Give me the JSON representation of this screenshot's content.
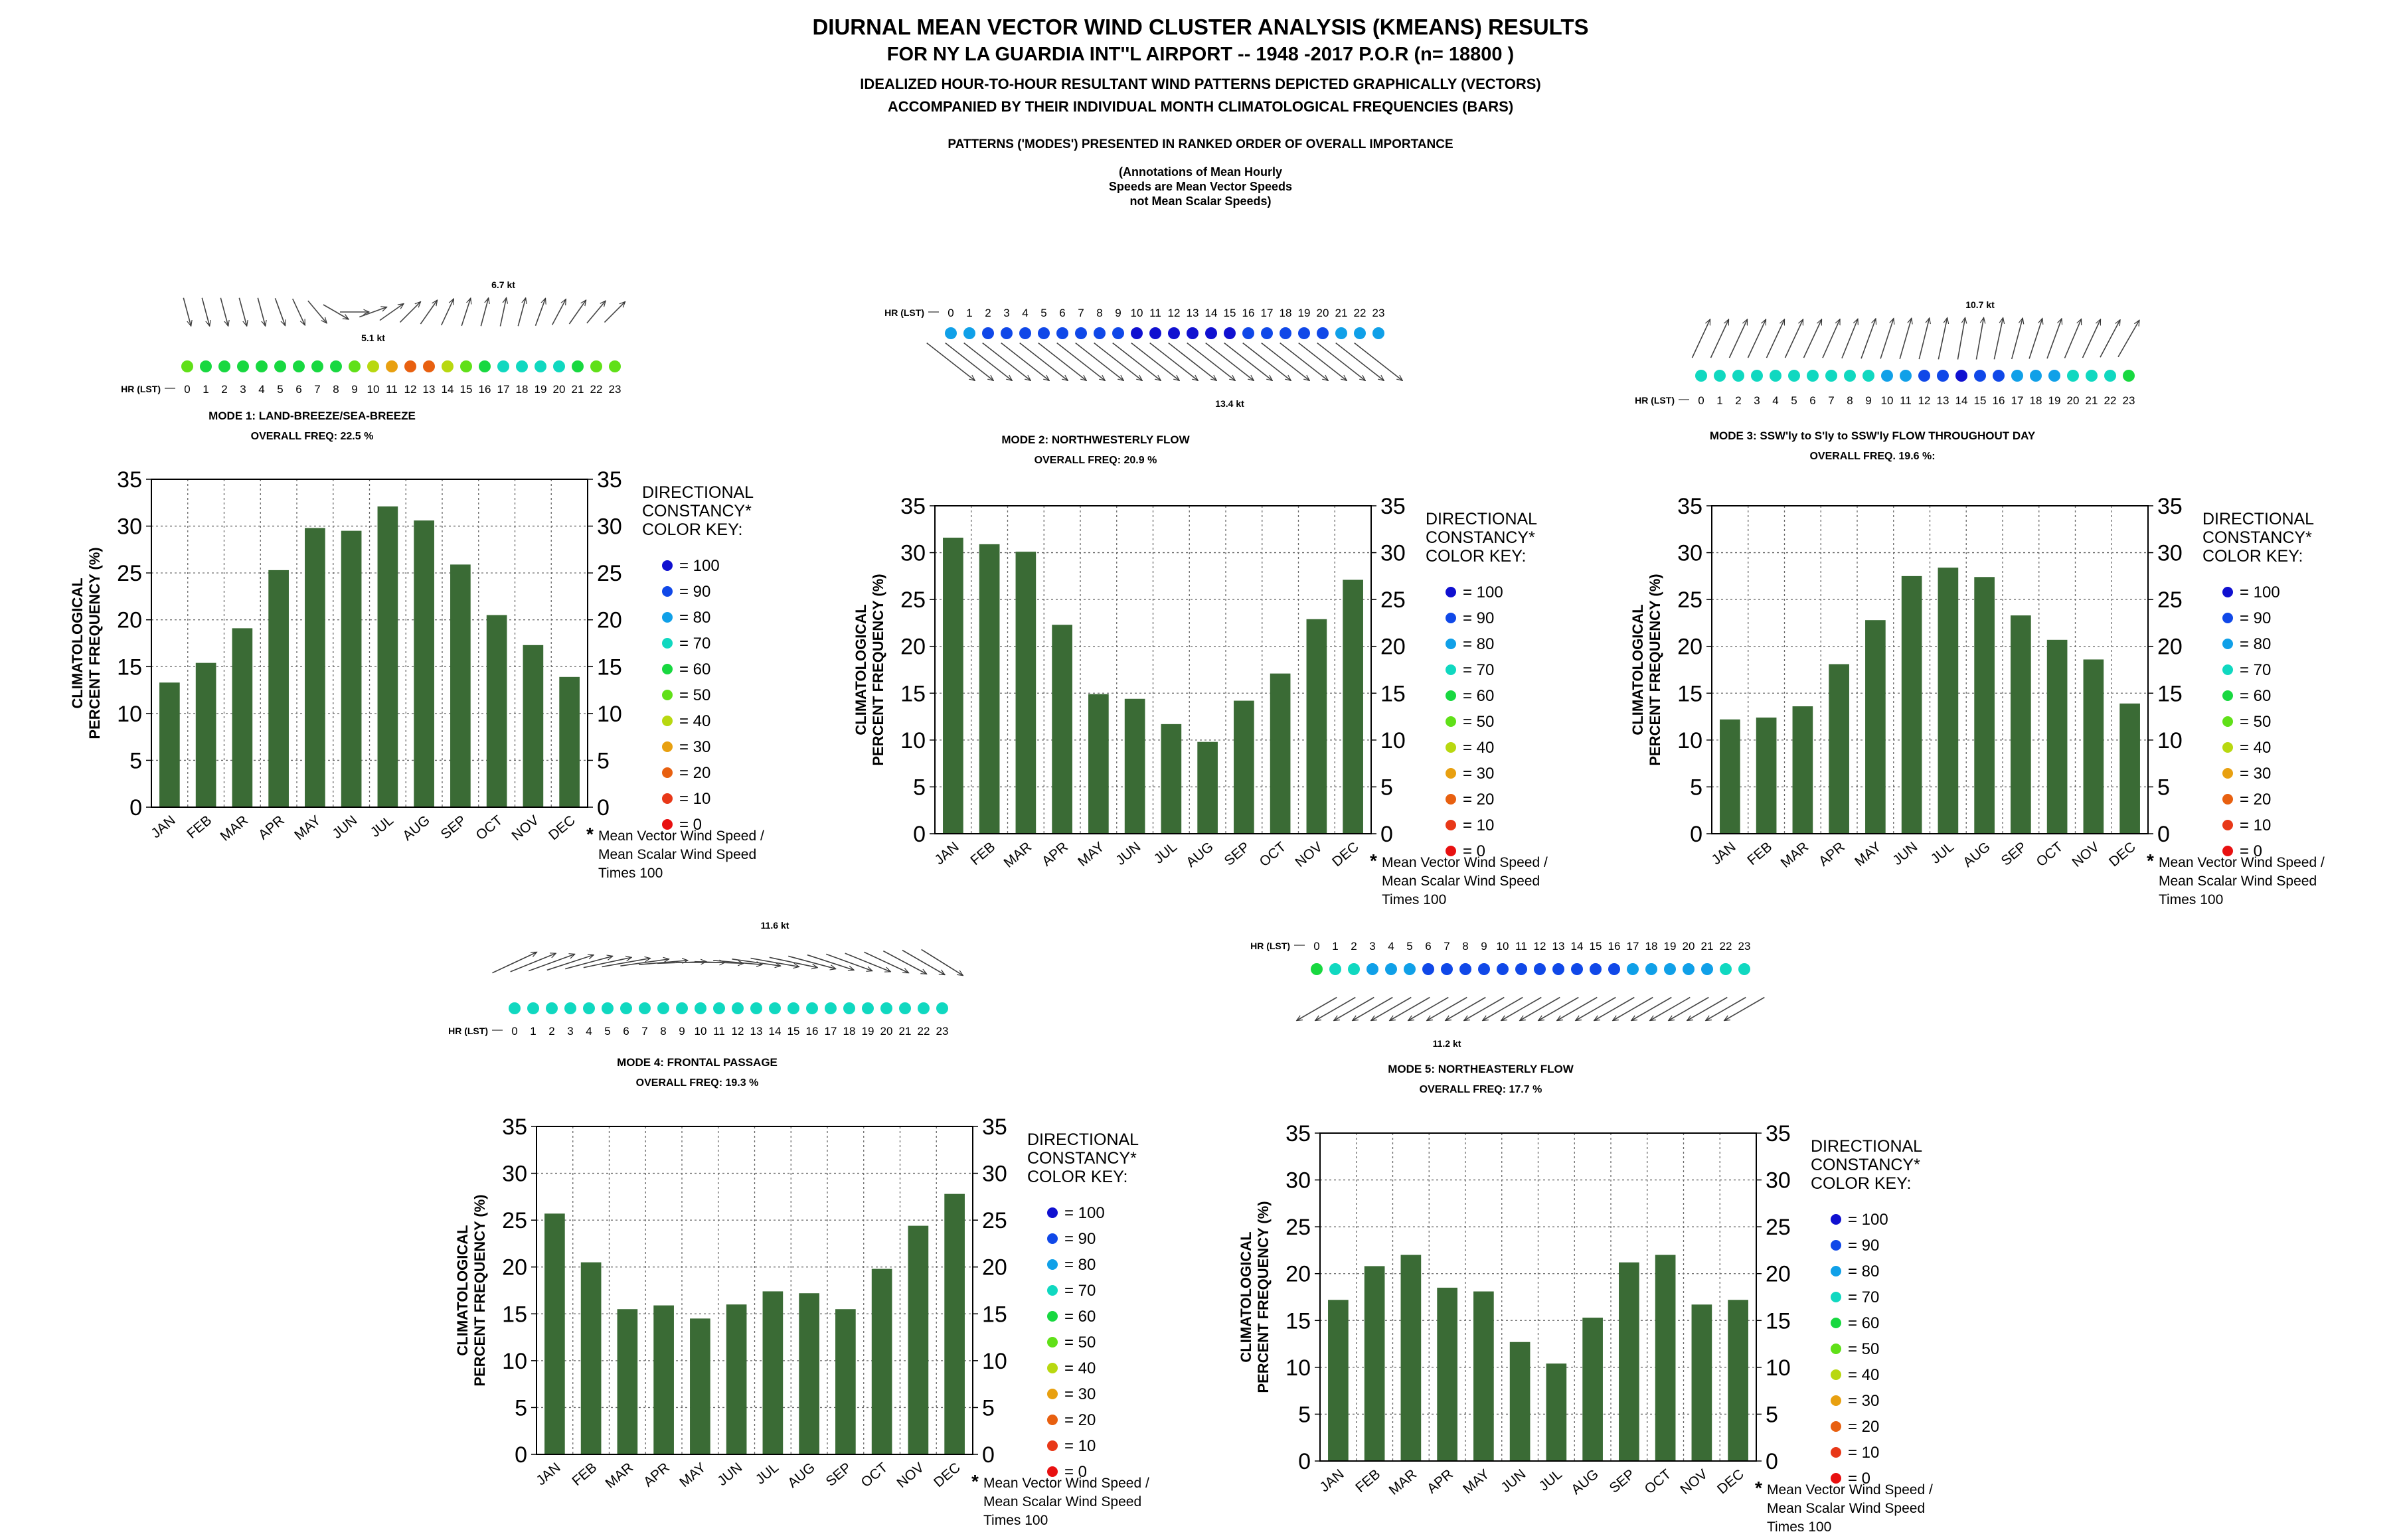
{
  "header": {
    "title": "DIURNAL MEAN VECTOR WIND CLUSTER ANALYSIS (KMEANS) RESULTS",
    "subtitle": "FOR NY LA GUARDIA INT''L AIRPORT -- 1948 -2017 P.O.R (n= 18800 )",
    "line3": "IDEALIZED HOUR-TO-HOUR RESULTANT WIND PATTERNS DEPICTED GRAPHICALLY (VECTORS)",
    "line4": "ACCOMPANIED BY THEIR INDIVIDUAL MONTH CLIMATOLOGICAL FREQUENCIES (BARS)",
    "line5": "PATTERNS ('MODES') PRESENTED IN RANKED ORDER OF OVERALL IMPORTANCE",
    "annotation": [
      "(Annotations of Mean Hourly",
      "Speeds are Mean Vector Speeds",
      "not Mean Scalar Speeds)"
    ]
  },
  "shared": {
    "hours": [
      "0",
      "1",
      "2",
      "3",
      "4",
      "5",
      "6",
      "7",
      "8",
      "9",
      "10",
      "11",
      "12",
      "13",
      "14",
      "15",
      "16",
      "17",
      "18",
      "19",
      "20",
      "21",
      "22",
      "23"
    ],
    "hr_label": "HR (LST)",
    "ylabel": [
      "CLIMATOLOGICAL",
      "PERCENT FREQUENCY (%)"
    ],
    "yticks": [
      "0",
      "5",
      "10",
      "15",
      "20",
      "25",
      "30",
      "35"
    ],
    "key_title": [
      "DIRECTIONAL",
      "CONSTANCY*",
      "COLOR KEY:"
    ],
    "key_levels": [
      {
        "label": "= 100",
        "color": "#1010d0"
      },
      {
        "label": "= 90",
        "color": "#1048e8"
      },
      {
        "label": "= 80",
        "color": "#10a0e8"
      },
      {
        "label": "= 70",
        "color": "#10d8c0"
      },
      {
        "label": "= 60",
        "color": "#18d840"
      },
      {
        "label": "= 50",
        "color": "#60e018"
      },
      {
        "label": "= 40",
        "color": "#b8d810"
      },
      {
        "label": "= 30",
        "color": "#e8a010"
      },
      {
        "label": "= 20",
        "color": "#e86010"
      },
      {
        "label": "= 10",
        "color": "#e83818"
      },
      {
        "label": "=  0",
        "color": "#e81010"
      }
    ],
    "footnote": [
      "Mean Vector Wind Speed /",
      "Mean Scalar Wind Speed",
      "Times 100"
    ],
    "bar_color": "#3a6b35"
  },
  "chart_data": [
    {
      "type": "bar",
      "mode_label": "MODE 1: LAND-BREEZE/SEA-BREEZE",
      "overall_freq": "OVERALL FREQ: 22.5 %",
      "categories": [
        "JAN",
        "FEB",
        "MAR",
        "APR",
        "MAY",
        "JUN",
        "JUL",
        "AUG",
        "SEP",
        "OCT",
        "NOV",
        "DEC"
      ],
      "values": [
        13.3,
        15.4,
        19.1,
        25.3,
        29.8,
        29.5,
        32.1,
        30.6,
        25.9,
        20.5,
        17.3,
        13.9
      ],
      "ylim": [
        0,
        35
      ],
      "xlabel": "",
      "ylabel": "CLIMATOLOGICAL PERCENT FREQUENCY (%)",
      "vectors": {
        "directions_deg": [
          345,
          345,
          345,
          345,
          345,
          340,
          335,
          320,
          300,
          270,
          250,
          235,
          225,
          215,
          205,
          198,
          195,
          192,
          195,
          200,
          208,
          215,
          220,
          225
        ],
        "constancy": [
          50,
          60,
          60,
          60,
          60,
          60,
          60,
          60,
          60,
          50,
          40,
          30,
          20,
          20,
          40,
          50,
          60,
          70,
          70,
          70,
          70,
          60,
          50,
          50
        ],
        "speed_labels": [
          {
            "text": "5.1 kt",
            "hour": 10,
            "side": "below"
          },
          {
            "text": "6.7 kt",
            "hour": 17,
            "side": "above"
          }
        ]
      }
    },
    {
      "type": "bar",
      "mode_label": "MODE 2: NORTHWESTERLY FLOW",
      "overall_freq": "OVERALL FREQ: 20.9 %",
      "categories": [
        "JAN",
        "FEB",
        "MAR",
        "APR",
        "MAY",
        "JUN",
        "JUL",
        "AUG",
        "SEP",
        "OCT",
        "NOV",
        "DEC"
      ],
      "values": [
        31.6,
        30.9,
        30.1,
        22.3,
        14.9,
        14.4,
        11.7,
        9.8,
        14.2,
        17.1,
        22.9,
        27.1
      ],
      "ylim": [
        0,
        35
      ],
      "xlabel": "",
      "ylabel": "CLIMATOLOGICAL PERCENT FREQUENCY (%)",
      "vectors": {
        "directions_deg": [
          308,
          308,
          308,
          308,
          308,
          308,
          308,
          308,
          308,
          308,
          308,
          308,
          308,
          308,
          308,
          308,
          308,
          308,
          308,
          308,
          308,
          308,
          308,
          308
        ],
        "constancy": [
          80,
          80,
          90,
          90,
          90,
          90,
          90,
          90,
          90,
          90,
          100,
          100,
          100,
          100,
          100,
          100,
          90,
          90,
          90,
          90,
          90,
          80,
          80,
          80
        ],
        "speed_labels": [
          {
            "text": "13.4 kt",
            "hour": 15,
            "side": "below"
          }
        ]
      }
    },
    {
      "type": "bar",
      "mode_label": "MODE 3: SSW'ly to S'ly to SSW'ly FLOW THROUGHOUT DAY",
      "overall_freq": "OVERALL FREQ. 19.6 %:",
      "categories": [
        "JAN",
        "FEB",
        "MAR",
        "APR",
        "MAY",
        "JUN",
        "JUL",
        "AUG",
        "SEP",
        "OCT",
        "NOV",
        "DEC"
      ],
      "values": [
        12.2,
        12.4,
        13.6,
        18.1,
        22.8,
        27.5,
        28.4,
        27.4,
        23.3,
        20.7,
        18.6,
        13.9
      ],
      "ylim": [
        0,
        35
      ],
      "xlabel": "",
      "ylabel": "CLIMATOLOGICAL PERCENT FREQUENCY (%)",
      "vectors": {
        "directions_deg": [
          205,
          205,
          205,
          205,
          205,
          205,
          205,
          204,
          202,
          200,
          198,
          196,
          194,
          192,
          190,
          190,
          192,
          195,
          198,
          200,
          203,
          205,
          208,
          210
        ],
        "constancy": [
          70,
          70,
          70,
          70,
          70,
          70,
          70,
          70,
          70,
          70,
          80,
          80,
          90,
          90,
          100,
          90,
          90,
          80,
          80,
          80,
          70,
          70,
          70,
          60
        ],
        "speed_labels": [
          {
            "text": "10.7 kt",
            "hour": 15,
            "side": "above"
          }
        ]
      }
    },
    {
      "type": "bar",
      "mode_label": "MODE 4: FRONTAL PASSAGE",
      "overall_freq": "OVERALL FREQ: 19.3 %",
      "categories": [
        "JAN",
        "FEB",
        "MAR",
        "APR",
        "MAY",
        "JUN",
        "JUL",
        "AUG",
        "SEP",
        "OCT",
        "NOV",
        "DEC"
      ],
      "values": [
        25.7,
        20.5,
        15.5,
        15.9,
        14.5,
        16.0,
        17.4,
        17.2,
        15.5,
        19.8,
        24.4,
        27.8
      ],
      "ylim": [
        0,
        35
      ],
      "xlabel": "",
      "ylabel": "CLIMATOLOGICAL PERCENT FREQUENCY (%)",
      "vectors": {
        "directions_deg": [
          245,
          248,
          250,
          252,
          255,
          258,
          260,
          262,
          265,
          268,
          270,
          272,
          275,
          278,
          280,
          282,
          285,
          288,
          290,
          292,
          295,
          298,
          300,
          302
        ],
        "constancy": [
          70,
          70,
          70,
          70,
          70,
          70,
          70,
          70,
          70,
          70,
          70,
          70,
          70,
          70,
          70,
          70,
          70,
          70,
          70,
          70,
          70,
          70,
          70,
          70
        ],
        "speed_labels": [
          {
            "text": "11.6 kt",
            "hour": 14,
            "side": "above"
          }
        ]
      }
    },
    {
      "type": "bar",
      "mode_label": "MODE 5: NORTHEASTERLY FLOW",
      "overall_freq": "OVERALL FREQ: 17.7 %",
      "categories": [
        "JAN",
        "FEB",
        "MAR",
        "APR",
        "MAY",
        "JUN",
        "JUL",
        "AUG",
        "SEP",
        "OCT",
        "NOV",
        "DEC"
      ],
      "values": [
        17.2,
        20.8,
        22.0,
        18.5,
        18.1,
        12.7,
        10.4,
        15.3,
        21.2,
        22.0,
        16.7,
        17.2
      ],
      "ylim": [
        0,
        35
      ],
      "xlabel": "",
      "ylabel": "CLIMATOLOGICAL PERCENT FREQUENCY (%)",
      "vectors": {
        "directions_deg": [
          60,
          60,
          60,
          60,
          60,
          60,
          60,
          60,
          60,
          60,
          60,
          60,
          60,
          60,
          60,
          60,
          60,
          60,
          60,
          60,
          60,
          60,
          60,
          60
        ],
        "constancy": [
          60,
          70,
          70,
          80,
          80,
          80,
          90,
          90,
          90,
          90,
          90,
          90,
          90,
          90,
          90,
          90,
          90,
          80,
          80,
          80,
          80,
          80,
          70,
          70
        ],
        "speed_labels": [
          {
            "text": "11.2 kt",
            "hour": 7,
            "side": "below"
          }
        ]
      }
    }
  ]
}
